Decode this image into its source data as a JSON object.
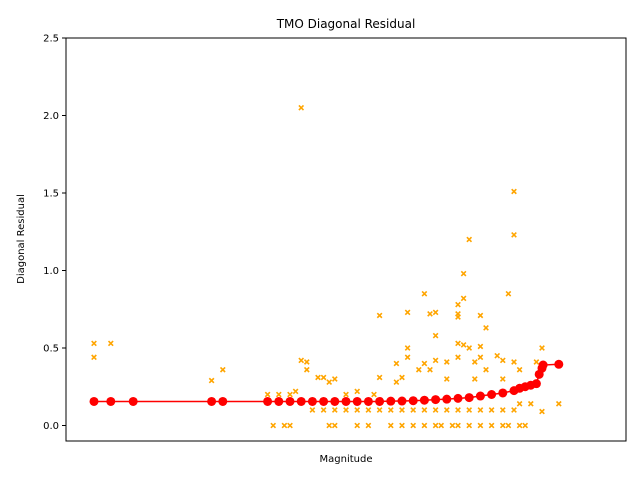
{
  "chart_data": {
    "type": "scatter",
    "title": "TMO Diagonal Residual",
    "xlabel": "Magnitude",
    "ylabel": "Diagonal Residual",
    "ylim": [
      -0.1,
      2.5
    ],
    "xlim": [
      0,
      100
    ],
    "yticks": [
      "0.0",
      "0.5",
      "1.0",
      "1.5",
      "2.0",
      "2.5"
    ],
    "grid": false,
    "series": [
      {
        "marker": "x",
        "color": "#ffa500",
        "points": [
          [
            5,
            0.53
          ],
          [
            5,
            0.44
          ],
          [
            8,
            0.53
          ],
          [
            26,
            0.29
          ],
          [
            28,
            0.36
          ],
          [
            36,
            0.2
          ],
          [
            37,
            0.0
          ],
          [
            38,
            0.2
          ],
          [
            39,
            0.0
          ],
          [
            40,
            0.0
          ],
          [
            40,
            0.2
          ],
          [
            41,
            0.22
          ],
          [
            42,
            0.42
          ],
          [
            42,
            2.05
          ],
          [
            43,
            0.36
          ],
          [
            43,
            0.41
          ],
          [
            45,
            0.31
          ],
          [
            46,
            0.31
          ],
          [
            47,
            0.28
          ],
          [
            47,
            0.0
          ],
          [
            48,
            0.0
          ],
          [
            48,
            0.3
          ],
          [
            50,
            0.2
          ],
          [
            52,
            0.0
          ],
          [
            52,
            0.22
          ],
          [
            54,
            0.0
          ],
          [
            55,
            0.2
          ],
          [
            56,
            0.71
          ],
          [
            56,
            0.31
          ],
          [
            58,
            0.0
          ],
          [
            59,
            0.4
          ],
          [
            59,
            0.28
          ],
          [
            60,
            0.31
          ],
          [
            61,
            0.5
          ],
          [
            61,
            0.44
          ],
          [
            61,
            0.73
          ],
          [
            62,
            0.0
          ],
          [
            63,
            0.36
          ],
          [
            64,
            0.85
          ],
          [
            64,
            0.4
          ],
          [
            65,
            0.72
          ],
          [
            65,
            0.36
          ],
          [
            66,
            0.58
          ],
          [
            66,
            0.73
          ],
          [
            66,
            0.42
          ],
          [
            67,
            0.0
          ],
          [
            68,
            0.41
          ],
          [
            68,
            0.3
          ],
          [
            69,
            0.0
          ],
          [
            70,
            0.78
          ],
          [
            70,
            0.72
          ],
          [
            70,
            0.7
          ],
          [
            70,
            0.53
          ],
          [
            70,
            0.44
          ],
          [
            71,
            0.98
          ],
          [
            71,
            0.82
          ],
          [
            71,
            0.52
          ],
          [
            72,
            1.2
          ],
          [
            72,
            0.5
          ],
          [
            73,
            0.41
          ],
          [
            73,
            0.3
          ],
          [
            74,
            0.71
          ],
          [
            74,
            0.51
          ],
          [
            74,
            0.44
          ],
          [
            75,
            0.63
          ],
          [
            75,
            0.36
          ],
          [
            76,
            0.0
          ],
          [
            77,
            0.45
          ],
          [
            78,
            0.42
          ],
          [
            78,
            0.3
          ],
          [
            79,
            0.85
          ],
          [
            79,
            0.0
          ],
          [
            80,
            1.51
          ],
          [
            80,
            1.23
          ],
          [
            80,
            0.41
          ],
          [
            81,
            0.36
          ],
          [
            81,
            0.14
          ],
          [
            82,
            0.0
          ],
          [
            83,
            0.14
          ],
          [
            84,
            0.41
          ],
          [
            85,
            0.09
          ],
          [
            85,
            0.5
          ],
          [
            88,
            0.14
          ],
          [
            44,
            0.1
          ],
          [
            46,
            0.1
          ],
          [
            48,
            0.1
          ],
          [
            50,
            0.1
          ],
          [
            52,
            0.1
          ],
          [
            54,
            0.1
          ],
          [
            56,
            0.1
          ],
          [
            58,
            0.1
          ],
          [
            60,
            0.1
          ],
          [
            62,
            0.1
          ],
          [
            64,
            0.1
          ],
          [
            66,
            0.1
          ],
          [
            68,
            0.1
          ],
          [
            70,
            0.1
          ],
          [
            72,
            0.1
          ],
          [
            74,
            0.1
          ],
          [
            76,
            0.1
          ],
          [
            78,
            0.1
          ],
          [
            80,
            0.1
          ],
          [
            60,
            0.0
          ],
          [
            64,
            0.0
          ],
          [
            66,
            0.0
          ],
          [
            70,
            0.0
          ],
          [
            72,
            0.0
          ],
          [
            74,
            0.0
          ],
          [
            78,
            0.0
          ],
          [
            81,
            0.0
          ]
        ]
      },
      {
        "marker": "o",
        "color": "#ff0000",
        "points": [
          [
            5,
            0.155
          ],
          [
            8,
            0.155
          ],
          [
            12,
            0.155
          ],
          [
            26,
            0.155
          ],
          [
            28,
            0.155
          ],
          [
            36,
            0.155
          ],
          [
            38,
            0.155
          ],
          [
            40,
            0.155
          ],
          [
            42,
            0.155
          ],
          [
            44,
            0.155
          ],
          [
            46,
            0.155
          ],
          [
            48,
            0.155
          ],
          [
            50,
            0.155
          ],
          [
            52,
            0.155
          ],
          [
            54,
            0.155
          ],
          [
            56,
            0.155
          ],
          [
            58,
            0.157
          ],
          [
            60,
            0.158
          ],
          [
            62,
            0.16
          ],
          [
            64,
            0.163
          ],
          [
            66,
            0.167
          ],
          [
            68,
            0.17
          ],
          [
            70,
            0.175
          ],
          [
            72,
            0.18
          ],
          [
            74,
            0.19
          ],
          [
            76,
            0.2
          ],
          [
            78,
            0.21
          ],
          [
            80,
            0.225
          ],
          [
            81,
            0.24
          ],
          [
            82,
            0.25
          ],
          [
            83,
            0.26
          ],
          [
            84,
            0.27
          ],
          [
            84.5,
            0.33
          ],
          [
            85,
            0.37
          ],
          [
            85.2,
            0.39
          ],
          [
            88,
            0.395
          ]
        ]
      }
    ]
  }
}
